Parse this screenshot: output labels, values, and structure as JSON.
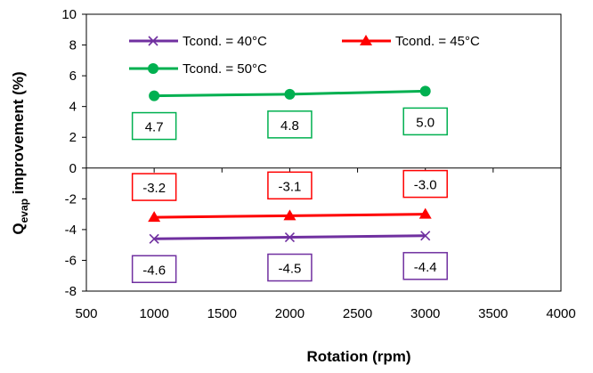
{
  "chart_data": {
    "type": "line",
    "x": [
      1000,
      2000,
      3000
    ],
    "xlabel": "Rotation (rpm)",
    "ylabel": "Q",
    "ylabel_subscript": "evap",
    "ylabel_suffix": " improvement (%)",
    "xlim": [
      500,
      4000
    ],
    "ylim": [
      -8,
      10
    ],
    "x_ticks": [
      500,
      1000,
      1500,
      2000,
      2500,
      3000,
      3500,
      4000
    ],
    "y_ticks": [
      -8,
      -6,
      -4,
      -2,
      0,
      2,
      4,
      6,
      8,
      10
    ],
    "grid": false,
    "legend_position": "top",
    "series": [
      {
        "name": "Tcond. = 40°C",
        "values": [
          -4.6,
          -4.5,
          -4.4
        ],
        "labels": [
          "-4.6",
          "-4.5",
          "-4.4"
        ],
        "color": "#7030a0",
        "marker": "x",
        "label_position": "below"
      },
      {
        "name": "Tcond. = 45°C",
        "values": [
          -3.2,
          -3.1,
          -3.0
        ],
        "labels": [
          "-3.2",
          "-3.1",
          "-3.0"
        ],
        "color": "#ff0000",
        "marker": "triangle",
        "label_position": "above"
      },
      {
        "name": "Tcond. = 50°C",
        "values": [
          4.7,
          4.8,
          5.0
        ],
        "labels": [
          "4.7",
          "4.8",
          "5.0"
        ],
        "color": "#00b050",
        "marker": "circle",
        "label_position": "below"
      }
    ]
  }
}
